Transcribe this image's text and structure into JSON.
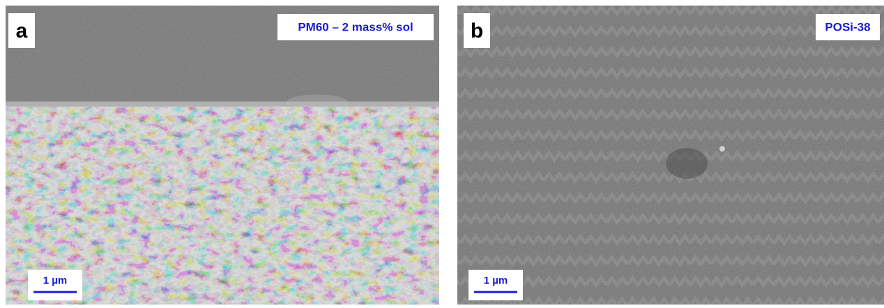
{
  "panels": [
    {
      "label": "a",
      "caption": "PM60 – 2 mass% sol",
      "scale_bar": "1 µm"
    },
    {
      "label": "b",
      "caption": "POSi-38",
      "scale_bar": "1 µm"
    }
  ]
}
